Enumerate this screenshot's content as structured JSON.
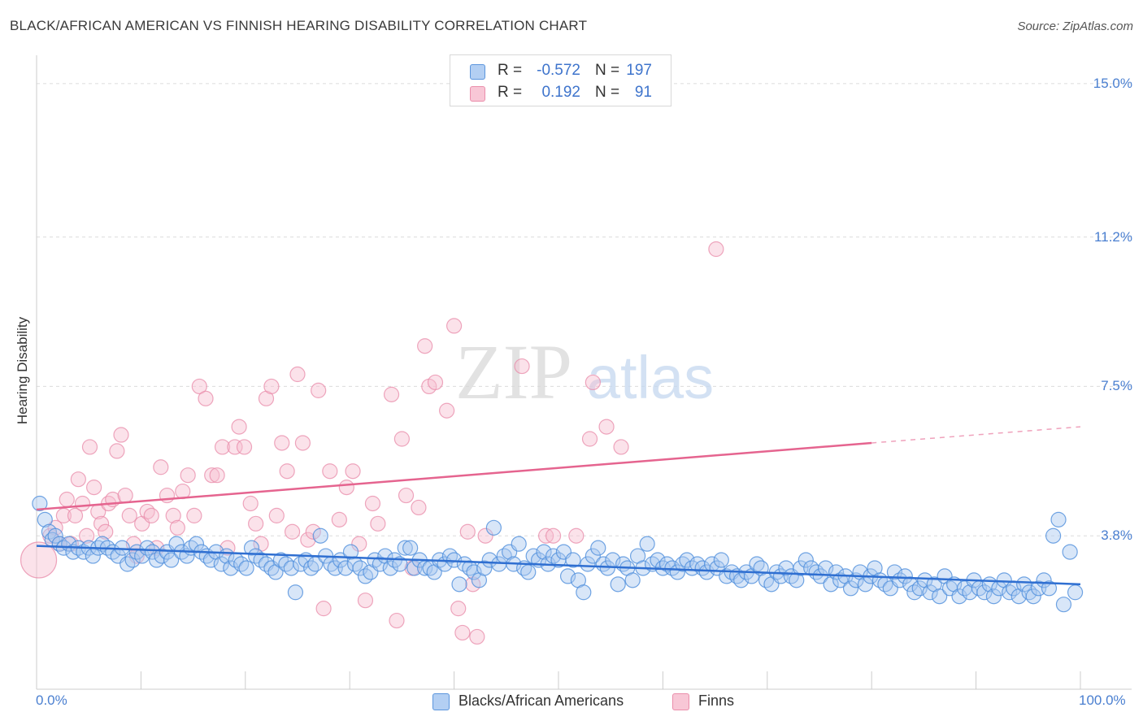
{
  "title": "BLACK/AFRICAN AMERICAN VS FINNISH HEARING DISABILITY CORRELATION CHART",
  "source": "Source: ZipAtlas.com",
  "watermark": {
    "zip": "ZIP",
    "atlas": "atlas"
  },
  "legend": {
    "rows": [
      {
        "r_label": "R =",
        "r_value": "-0.572",
        "n_label": "N =",
        "n_value": "197"
      },
      {
        "r_label": "R =",
        "r_value": "0.192",
        "n_label": "N =",
        "n_value": "91"
      }
    ]
  },
  "bottom_legend": {
    "series0": "Blacks/African Americans",
    "series1": "Finns"
  },
  "colors": {
    "blue_fill": "#a9c8f0",
    "blue_stroke": "#4f8fdc",
    "blue_line": "#2f6fd1",
    "pink_fill": "#f6bfd0",
    "pink_stroke": "#e889a8",
    "pink_line": "#e5648f",
    "tick_text": "#4a7fd0"
  },
  "chart_data": {
    "type": "scatter",
    "title": "BLACK/AFRICAN AMERICAN VS FINNISH HEARING DISABILITY CORRELATION CHART",
    "xlabel": "",
    "ylabel": "Hearing Disability",
    "xlim": [
      0,
      100
    ],
    "ylim": [
      0,
      15.5
    ],
    "x_tick_labels": [
      "0.0%",
      "100.0%"
    ],
    "y_ticks": [
      3.8,
      7.5,
      11.2,
      15.0
    ],
    "y_tick_labels": [
      "3.8%",
      "7.5%",
      "11.2%",
      "15.0%"
    ],
    "grid": true,
    "series": [
      {
        "name": "Blacks/African Americans",
        "r": -0.572,
        "n": 197,
        "trend": {
          "x0": 0,
          "y0": 3.55,
          "x1": 100,
          "y1": 2.6
        },
        "points": [
          [
            0.3,
            4.6
          ],
          [
            0.8,
            4.2
          ],
          [
            1.2,
            3.9
          ],
          [
            1.5,
            3.7
          ],
          [
            1.8,
            3.8
          ],
          [
            2.2,
            3.6
          ],
          [
            2.6,
            3.5
          ],
          [
            3.1,
            3.6
          ],
          [
            3.5,
            3.4
          ],
          [
            4.0,
            3.5
          ],
          [
            4.5,
            3.4
          ],
          [
            5.0,
            3.5
          ],
          [
            5.4,
            3.3
          ],
          [
            5.9,
            3.5
          ],
          [
            6.3,
            3.6
          ],
          [
            6.8,
            3.5
          ],
          [
            7.3,
            3.4
          ],
          [
            7.8,
            3.3
          ],
          [
            8.2,
            3.5
          ],
          [
            8.7,
            3.1
          ],
          [
            9.2,
            3.2
          ],
          [
            9.6,
            3.4
          ],
          [
            10.1,
            3.3
          ],
          [
            10.6,
            3.5
          ],
          [
            11.1,
            3.4
          ],
          [
            11.5,
            3.2
          ],
          [
            12.0,
            3.3
          ],
          [
            12.5,
            3.4
          ],
          [
            12.9,
            3.2
          ],
          [
            13.4,
            3.6
          ],
          [
            13.9,
            3.4
          ],
          [
            14.4,
            3.3
          ],
          [
            14.8,
            3.5
          ],
          [
            15.3,
            3.6
          ],
          [
            15.8,
            3.4
          ],
          [
            16.3,
            3.3
          ],
          [
            16.7,
            3.2
          ],
          [
            17.2,
            3.4
          ],
          [
            17.7,
            3.1
          ],
          [
            18.2,
            3.3
          ],
          [
            18.6,
            3.0
          ],
          [
            19.1,
            3.2
          ],
          [
            19.6,
            3.1
          ],
          [
            20.1,
            3.0
          ],
          [
            20.6,
            3.5
          ],
          [
            21.0,
            3.3
          ],
          [
            21.5,
            3.2
          ],
          [
            22.0,
            3.1
          ],
          [
            22.5,
            3.0
          ],
          [
            22.9,
            2.9
          ],
          [
            23.4,
            3.2
          ],
          [
            23.9,
            3.1
          ],
          [
            24.4,
            3.0
          ],
          [
            24.8,
            2.4
          ],
          [
            25.3,
            3.1
          ],
          [
            25.8,
            3.2
          ],
          [
            26.3,
            3.0
          ],
          [
            26.7,
            3.1
          ],
          [
            27.2,
            3.8
          ],
          [
            27.7,
            3.3
          ],
          [
            28.2,
            3.1
          ],
          [
            28.6,
            3.0
          ],
          [
            29.1,
            3.2
          ],
          [
            29.6,
            3.0
          ],
          [
            30.1,
            3.4
          ],
          [
            30.5,
            3.1
          ],
          [
            31.0,
            3.0
          ],
          [
            31.5,
            2.8
          ],
          [
            32.0,
            2.9
          ],
          [
            32.4,
            3.2
          ],
          [
            32.9,
            3.1
          ],
          [
            33.4,
            3.3
          ],
          [
            33.9,
            3.0
          ],
          [
            34.3,
            3.2
          ],
          [
            34.8,
            3.1
          ],
          [
            35.3,
            3.5
          ],
          [
            35.8,
            3.5
          ],
          [
            36.2,
            3.0
          ],
          [
            36.7,
            3.2
          ],
          [
            37.2,
            3.0
          ],
          [
            37.7,
            3.0
          ],
          [
            38.1,
            2.9
          ],
          [
            38.6,
            3.2
          ],
          [
            39.1,
            3.1
          ],
          [
            39.6,
            3.3
          ],
          [
            40.0,
            3.2
          ],
          [
            40.5,
            2.6
          ],
          [
            41.0,
            3.1
          ],
          [
            41.5,
            3.0
          ],
          [
            41.9,
            2.9
          ],
          [
            42.4,
            2.7
          ],
          [
            42.9,
            3.0
          ],
          [
            43.4,
            3.2
          ],
          [
            43.8,
            4.0
          ],
          [
            44.3,
            3.1
          ],
          [
            44.8,
            3.3
          ],
          [
            45.3,
            3.4
          ],
          [
            45.7,
            3.1
          ],
          [
            46.2,
            3.6
          ],
          [
            46.7,
            3.0
          ],
          [
            47.1,
            2.9
          ],
          [
            47.6,
            3.3
          ],
          [
            48.1,
            3.2
          ],
          [
            48.6,
            3.4
          ],
          [
            49.0,
            3.1
          ],
          [
            49.5,
            3.3
          ],
          [
            50.0,
            3.2
          ],
          [
            50.5,
            3.4
          ],
          [
            50.9,
            2.8
          ],
          [
            51.4,
            3.2
          ],
          [
            51.9,
            2.7
          ],
          [
            52.4,
            2.4
          ],
          [
            52.8,
            3.1
          ],
          [
            53.3,
            3.3
          ],
          [
            53.8,
            3.5
          ],
          [
            54.3,
            3.1
          ],
          [
            54.7,
            3.0
          ],
          [
            55.2,
            3.2
          ],
          [
            55.7,
            2.6
          ],
          [
            56.2,
            3.1
          ],
          [
            56.6,
            3.0
          ],
          [
            57.1,
            2.7
          ],
          [
            57.6,
            3.3
          ],
          [
            58.1,
            3.0
          ],
          [
            58.5,
            3.6
          ],
          [
            59.0,
            3.1
          ],
          [
            59.5,
            3.2
          ],
          [
            60.0,
            3.0
          ],
          [
            60.4,
            3.1
          ],
          [
            60.9,
            3.0
          ],
          [
            61.4,
            2.9
          ],
          [
            61.9,
            3.1
          ],
          [
            62.3,
            3.2
          ],
          [
            62.8,
            3.0
          ],
          [
            63.3,
            3.1
          ],
          [
            63.8,
            3.0
          ],
          [
            64.2,
            2.9
          ],
          [
            64.7,
            3.1
          ],
          [
            65.2,
            3.0
          ],
          [
            65.6,
            3.2
          ],
          [
            66.1,
            2.8
          ],
          [
            66.6,
            2.9
          ],
          [
            67.1,
            2.8
          ],
          [
            67.5,
            2.7
          ],
          [
            68.0,
            2.9
          ],
          [
            68.5,
            2.8
          ],
          [
            69.0,
            3.1
          ],
          [
            69.4,
            3.0
          ],
          [
            69.9,
            2.7
          ],
          [
            70.4,
            2.6
          ],
          [
            70.9,
            2.9
          ],
          [
            71.3,
            2.8
          ],
          [
            71.8,
            3.0
          ],
          [
            72.3,
            2.8
          ],
          [
            72.8,
            2.7
          ],
          [
            73.2,
            3.0
          ],
          [
            73.7,
            3.2
          ],
          [
            74.2,
            3.0
          ],
          [
            74.7,
            2.9
          ],
          [
            75.1,
            2.8
          ],
          [
            75.6,
            3.0
          ],
          [
            76.1,
            2.6
          ],
          [
            76.6,
            2.9
          ],
          [
            77.0,
            2.7
          ],
          [
            77.5,
            2.8
          ],
          [
            78.0,
            2.5
          ],
          [
            78.5,
            2.7
          ],
          [
            78.9,
            2.9
          ],
          [
            79.4,
            2.6
          ],
          [
            79.9,
            2.8
          ],
          [
            80.3,
            3.0
          ],
          [
            80.8,
            2.7
          ],
          [
            81.3,
            2.6
          ],
          [
            81.8,
            2.5
          ],
          [
            82.2,
            2.9
          ],
          [
            82.7,
            2.7
          ],
          [
            83.2,
            2.8
          ],
          [
            83.7,
            2.6
          ],
          [
            84.1,
            2.4
          ],
          [
            84.6,
            2.5
          ],
          [
            85.1,
            2.7
          ],
          [
            85.6,
            2.4
          ],
          [
            86.0,
            2.6
          ],
          [
            86.5,
            2.3
          ],
          [
            87.0,
            2.8
          ],
          [
            87.5,
            2.5
          ],
          [
            87.9,
            2.6
          ],
          [
            88.4,
            2.3
          ],
          [
            88.9,
            2.5
          ],
          [
            89.4,
            2.4
          ],
          [
            89.8,
            2.7
          ],
          [
            90.3,
            2.5
          ],
          [
            90.8,
            2.4
          ],
          [
            91.3,
            2.6
          ],
          [
            91.7,
            2.3
          ],
          [
            92.2,
            2.5
          ],
          [
            92.7,
            2.7
          ],
          [
            93.2,
            2.4
          ],
          [
            93.6,
            2.5
          ],
          [
            94.1,
            2.3
          ],
          [
            94.6,
            2.6
          ],
          [
            95.1,
            2.4
          ],
          [
            95.5,
            2.3
          ],
          [
            96.0,
            2.5
          ],
          [
            96.5,
            2.7
          ],
          [
            97.0,
            2.5
          ],
          [
            97.4,
            3.8
          ],
          [
            97.9,
            4.2
          ],
          [
            98.4,
            2.1
          ],
          [
            99.0,
            3.4
          ],
          [
            99.5,
            2.4
          ]
        ]
      },
      {
        "name": "Finns",
        "r": 0.192,
        "n": 91,
        "trend": {
          "x0": 0,
          "y0": 4.45,
          "x1": 80,
          "y1": 6.1,
          "dash_to_x": 100,
          "dash_to_y": 6.5
        },
        "points": [
          [
            0.2,
            3.2
          ],
          [
            1.3,
            3.8
          ],
          [
            1.8,
            4.0
          ],
          [
            2.2,
            3.6
          ],
          [
            2.6,
            4.3
          ],
          [
            2.9,
            4.7
          ],
          [
            3.3,
            3.6
          ],
          [
            3.7,
            4.3
          ],
          [
            4.0,
            5.2
          ],
          [
            4.4,
            4.6
          ],
          [
            4.8,
            3.8
          ],
          [
            5.1,
            6.0
          ],
          [
            5.5,
            5.0
          ],
          [
            5.9,
            4.4
          ],
          [
            6.2,
            4.1
          ],
          [
            6.6,
            3.9
          ],
          [
            6.9,
            4.6
          ],
          [
            7.3,
            4.7
          ],
          [
            7.7,
            5.9
          ],
          [
            8.1,
            6.3
          ],
          [
            8.5,
            4.8
          ],
          [
            8.9,
            4.3
          ],
          [
            9.3,
            3.6
          ],
          [
            9.6,
            3.3
          ],
          [
            10.1,
            4.1
          ],
          [
            10.6,
            4.4
          ],
          [
            11.0,
            4.3
          ],
          [
            11.5,
            3.5
          ],
          [
            11.9,
            5.5
          ],
          [
            12.5,
            4.8
          ],
          [
            13.1,
            4.3
          ],
          [
            13.5,
            4.0
          ],
          [
            14.0,
            4.9
          ],
          [
            14.5,
            5.3
          ],
          [
            15.1,
            4.3
          ],
          [
            15.6,
            7.5
          ],
          [
            16.2,
            7.2
          ],
          [
            16.8,
            5.3
          ],
          [
            17.3,
            5.3
          ],
          [
            17.8,
            6.0
          ],
          [
            18.3,
            3.5
          ],
          [
            19.0,
            6.0
          ],
          [
            19.4,
            6.5
          ],
          [
            19.9,
            6.0
          ],
          [
            20.5,
            4.6
          ],
          [
            21.0,
            4.1
          ],
          [
            21.5,
            3.6
          ],
          [
            22.0,
            7.2
          ],
          [
            22.5,
            7.5
          ],
          [
            23.0,
            4.3
          ],
          [
            23.5,
            6.1
          ],
          [
            24.0,
            5.4
          ],
          [
            24.5,
            3.9
          ],
          [
            25.0,
            7.8
          ],
          [
            25.5,
            6.1
          ],
          [
            26.0,
            3.7
          ],
          [
            26.5,
            3.9
          ],
          [
            27.0,
            7.4
          ],
          [
            27.5,
            2.0
          ],
          [
            28.1,
            5.4
          ],
          [
            29.0,
            4.2
          ],
          [
            29.7,
            5.0
          ],
          [
            30.3,
            5.4
          ],
          [
            30.9,
            3.6
          ],
          [
            31.5,
            2.2
          ],
          [
            32.2,
            4.6
          ],
          [
            32.7,
            4.1
          ],
          [
            34.0,
            7.3
          ],
          [
            34.5,
            1.7
          ],
          [
            35.0,
            6.2
          ],
          [
            35.4,
            4.8
          ],
          [
            36.0,
            3.0
          ],
          [
            36.6,
            4.5
          ],
          [
            37.2,
            8.5
          ],
          [
            37.6,
            7.5
          ],
          [
            38.2,
            7.6
          ],
          [
            39.3,
            6.9
          ],
          [
            40.0,
            9.0
          ],
          [
            40.4,
            2.0
          ],
          [
            40.8,
            1.4
          ],
          [
            41.3,
            3.9
          ],
          [
            41.8,
            2.6
          ],
          [
            42.2,
            1.3
          ],
          [
            43.0,
            3.8
          ],
          [
            46.5,
            8.0
          ],
          [
            48.8,
            3.8
          ],
          [
            49.5,
            3.8
          ],
          [
            51.7,
            3.8
          ],
          [
            53.0,
            6.2
          ],
          [
            53.3,
            7.6
          ],
          [
            54.6,
            6.5
          ],
          [
            56.0,
            6.0
          ],
          [
            65.1,
            10.9
          ]
        ]
      }
    ]
  }
}
